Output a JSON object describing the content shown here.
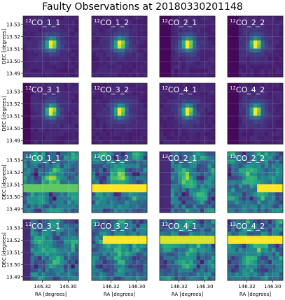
{
  "title": "Faulty Observations at 20180330201148",
  "chart_data": {
    "type": "heatmap",
    "title": "Faulty Observations at 20180330201148",
    "layout": {
      "rows": 4,
      "cols": 4
    },
    "xlabel": "RA [degrees]",
    "ylabel": "DEC [degrees]",
    "x_ticks": [
      "146.32",
      "146.30"
    ],
    "y_ticks": [
      "13.53",
      "13.52",
      "13.51",
      "13.50",
      "13.49"
    ],
    "xlim": [
      146.335,
      146.292
    ],
    "ylim": [
      13.487,
      13.537
    ],
    "colormap": "viridis",
    "source": {
      "ra": 146.313,
      "dec": 13.514
    },
    "panels": [
      {
        "iso": "12",
        "name": "CO_1_1",
        "type": "point",
        "bright_ra": 146.313,
        "bright_dec": 13.514
      },
      {
        "iso": "12",
        "name": "CO_1_2",
        "type": "point",
        "bright_ra": 146.313,
        "bright_dec": 13.514
      },
      {
        "iso": "12",
        "name": "CO_2_1",
        "type": "point",
        "bright_ra": 146.313,
        "bright_dec": 13.514,
        "dark_ra_above": 146.326
      },
      {
        "iso": "12",
        "name": "CO_2_2",
        "type": "point",
        "bright_ra": 146.313,
        "bright_dec": 13.514,
        "dark_ra_above": 146.326
      },
      {
        "iso": "12",
        "name": "CO_3_1",
        "type": "point",
        "bright_ra": 146.313,
        "bright_dec": 13.514,
        "dark_ra_above": 146.329
      },
      {
        "iso": "12",
        "name": "CO_3_2",
        "type": "point",
        "bright_ra": 146.313,
        "bright_dec": 13.514
      },
      {
        "iso": "12",
        "name": "CO_4_1",
        "type": "point",
        "bright_ra": 146.313,
        "bright_dec": 13.514
      },
      {
        "iso": "12",
        "name": "CO_4_2",
        "type": "point",
        "bright_ra": 146.313,
        "bright_dec": 13.514,
        "dark_ra_above": 146.326
      },
      {
        "iso": "13",
        "name": "CO_1_1",
        "type": "noise",
        "stripe_dec": 13.508,
        "stripe_ra_below": 146.335,
        "stripe_strength": 0.55
      },
      {
        "iso": "13",
        "name": "CO_1_2",
        "type": "noise",
        "stripe_dec": 13.508,
        "stripe_ra_below": 146.335,
        "stripe_strength": 1.0
      },
      {
        "iso": "13",
        "name": "CO_2_1",
        "type": "noise",
        "dark_ra_above": 146.326
      },
      {
        "iso": "13",
        "name": "CO_2_2",
        "type": "noise",
        "stripe_dec": 13.508,
        "stripe_ra_below": 146.313,
        "stripe_strength": 1.0
      },
      {
        "iso": "13",
        "name": "CO_3_1",
        "type": "noise",
        "dark_ra_above": 146.329
      },
      {
        "iso": "13",
        "name": "CO_3_2",
        "type": "noise",
        "stripe_dec": 13.521,
        "stripe_ra_below": 146.326,
        "stripe_strength": 1.0
      },
      {
        "iso": "13",
        "name": "CO_4_1",
        "type": "noise",
        "stripe_dec": 13.521,
        "stripe_ra_below": 146.335,
        "stripe_strength": 0.9
      },
      {
        "iso": "13",
        "name": "CO_4_2",
        "type": "noise",
        "stripe_dec": 13.521,
        "stripe_ra_below": 146.335,
        "stripe_strength": 1.0
      }
    ]
  }
}
